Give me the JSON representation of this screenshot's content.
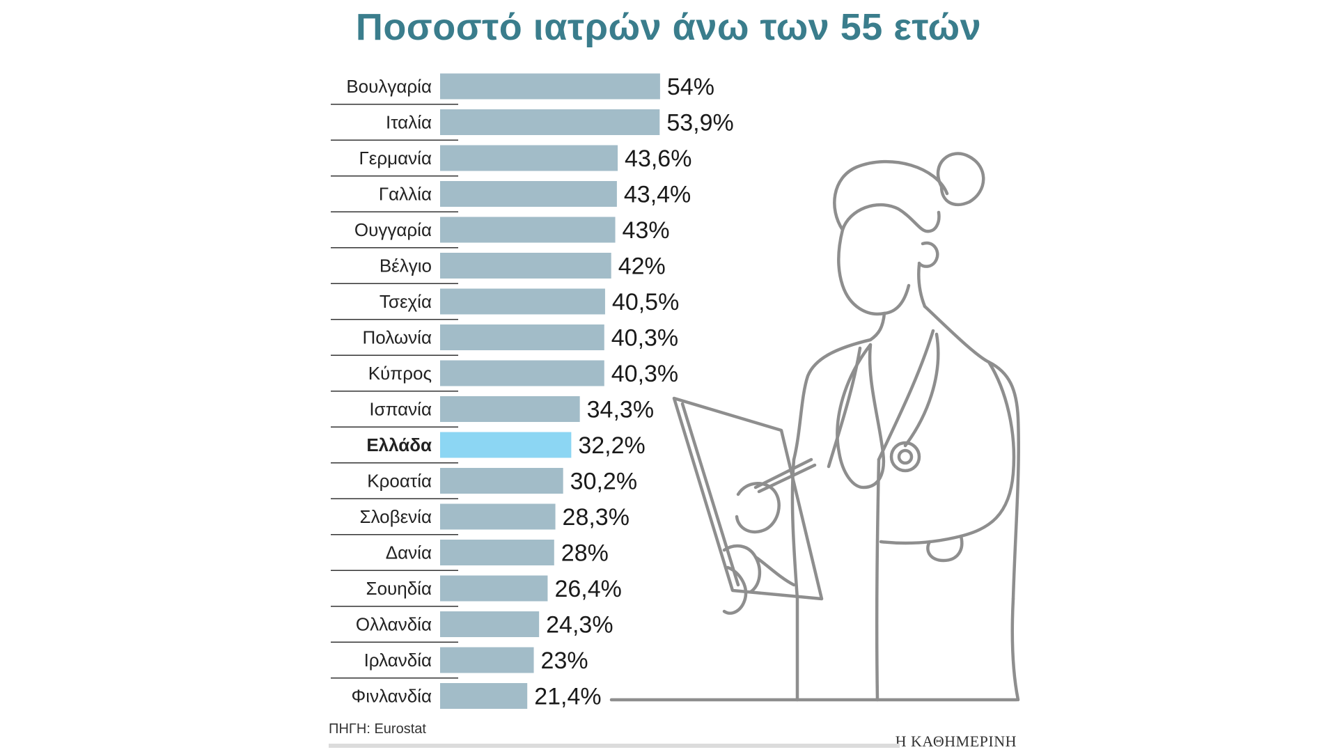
{
  "title": "Ποσοστό ιατρών άνω των 55 ετών",
  "source": "ΠΗΓΗ: Eurostat",
  "brand": "Η ΚΑΘΗΜΕΡΙΝΗ",
  "colors": {
    "title": "#3a7d8c",
    "bar": "#a2bcc8",
    "highlight_bar": "#8cd6f3",
    "rule": "#333333",
    "illustration": "#8e8e8e"
  },
  "illustration": {
    "icon": "doctor-line-art-icon",
    "description": "doctor-with-stethoscope-and-clipboard"
  },
  "chart_data": {
    "type": "bar",
    "orientation": "horizontal",
    "title": "Ποσοστό ιατρών άνω των 55 ετών",
    "xlim": [
      0,
      100
    ],
    "highlight": "Ελλάδα",
    "categories": [
      "Βουλγαρία",
      "Ιταλία",
      "Γερμανία",
      "Γαλλία",
      "Ουγγαρία",
      "Βέλγιο",
      "Τσεχία",
      "Πολωνία",
      "Κύπρος",
      "Ισπανία",
      "Ελλάδα",
      "Κροατία",
      "Σλοβενία",
      "Δανία",
      "Σουηδία",
      "Ολλανδία",
      "Ιρλανδία",
      "Φινλανδία"
    ],
    "values": [
      54,
      53.9,
      43.6,
      43.4,
      43,
      42,
      40.5,
      40.3,
      40.3,
      34.3,
      32.2,
      30.2,
      28.3,
      28,
      26.4,
      24.3,
      23,
      21.4
    ],
    "labels": [
      "54%",
      "53,9%",
      "43,6%",
      "43,4%",
      "43%",
      "42%",
      "40,5%",
      "40,3%",
      "40,3%",
      "34,3%",
      "32,2%",
      "30,2%",
      "28,3%",
      "28%",
      "26,4%",
      "24,3%",
      "23%",
      "21,4%"
    ]
  }
}
